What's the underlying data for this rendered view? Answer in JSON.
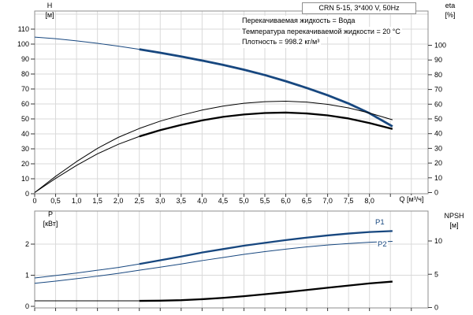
{
  "header": {
    "title": "CRN 5-15, 3*400 V, 50Hz"
  },
  "info": {
    "lines": [
      "Перекачиваемая жидкость = Вода",
      "Температура перекачиваемой жидкости = 20 °C",
      "Плотность = 998.2 кг/м³"
    ]
  },
  "axis_labels": {
    "h_sym": "H",
    "h_unit": "[м]",
    "eta_sym": "eta",
    "eta_unit": "[%]",
    "p_sym": "P",
    "p_unit": "[кВт]",
    "npsh_sym": "NPSH",
    "npsh_unit": "[м]",
    "x_label": "Q [м³/ч]"
  },
  "curve_labels": {
    "p1": "P1",
    "p2": "P2"
  },
  "colors": {
    "blue": "#17477f",
    "black": "#000000",
    "grid": "#d9d9d9",
    "frame": "#8e8e8e",
    "tick": "#3a3a3a",
    "text": "#000000"
  },
  "chart_data": [
    {
      "id": "head-efficiency-chart",
      "type": "line",
      "xlabel": "Q [м³/ч]",
      "x_axis": {
        "min": 0,
        "max": 9.4,
        "tick_step": 0.5,
        "grid_max": 9.0,
        "tick_labels": [
          "0",
          "0,5",
          "1,0",
          "1,5",
          "2,0",
          "2,5",
          "3,0",
          "3,5",
          "4,0",
          "4,5",
          "5,0",
          "5,5",
          "6,0",
          "6,5",
          "7,0",
          "7,5",
          "8,0"
        ]
      },
      "y_left": {
        "label": "H [м]",
        "ticks": [
          0,
          10,
          20,
          30,
          40,
          50,
          60,
          70,
          80,
          90,
          100,
          110
        ],
        "grid": [
          10,
          20,
          30,
          40,
          50,
          60,
          70,
          80,
          90,
          100,
          110,
          120
        ]
      },
      "y_right": {
        "label": "eta [%]",
        "ticks": [
          0,
          10,
          20,
          30,
          40,
          50,
          60,
          70,
          80,
          90,
          100
        ]
      },
      "series": [
        {
          "name": "H",
          "axis": "left",
          "color_key": "blue",
          "thick_from": 2.5,
          "points": [
            [
              0,
              104.7
            ],
            [
              0.5,
              103.6
            ],
            [
              1,
              102.2
            ],
            [
              1.5,
              100.5
            ],
            [
              2,
              98.6
            ],
            [
              2.5,
              96.5
            ],
            [
              3,
              94.2
            ],
            [
              3.5,
              91.7
            ],
            [
              4,
              89.0
            ],
            [
              4.5,
              86.1
            ],
            [
              5,
              82.9
            ],
            [
              5.5,
              79.3
            ],
            [
              6,
              75.2
            ],
            [
              6.5,
              70.7
            ],
            [
              7,
              65.8
            ],
            [
              7.5,
              60.3
            ],
            [
              8,
              53.8
            ],
            [
              8.55,
              45.0
            ]
          ]
        },
        {
          "name": "eta-pump",
          "axis": "right",
          "color_key": "black",
          "thick_from": null,
          "points": [
            [
              0,
              0
            ],
            [
              0.5,
              11
            ],
            [
              1,
              21
            ],
            [
              1.5,
              30
            ],
            [
              2,
              37.5
            ],
            [
              2.5,
              43.5
            ],
            [
              3,
              48.5
            ],
            [
              3.5,
              52.5
            ],
            [
              4,
              56
            ],
            [
              4.5,
              58.7
            ],
            [
              5,
              60.6
            ],
            [
              5.5,
              61.7
            ],
            [
              6,
              62
            ],
            [
              6.5,
              61.4
            ],
            [
              7,
              59.9
            ],
            [
              7.5,
              57.5
            ],
            [
              8,
              54
            ],
            [
              8.55,
              49.4
            ]
          ]
        },
        {
          "name": "eta-pump-motor",
          "axis": "right",
          "color_key": "black",
          "thick_from": 2.5,
          "points": [
            [
              0,
              0
            ],
            [
              0.5,
              9.6
            ],
            [
              1,
              18.4
            ],
            [
              1.5,
              26.3
            ],
            [
              2,
              32.8
            ],
            [
              2.5,
              38.1
            ],
            [
              3,
              42.4
            ],
            [
              3.5,
              45.9
            ],
            [
              4,
              49
            ],
            [
              4.5,
              51.4
            ],
            [
              5,
              53
            ],
            [
              5.5,
              54
            ],
            [
              6,
              54.3
            ],
            [
              6.5,
              53.7
            ],
            [
              7,
              52.4
            ],
            [
              7.5,
              50.3
            ],
            [
              8,
              47.2
            ],
            [
              8.55,
              43.2
            ]
          ]
        }
      ]
    },
    {
      "id": "power-npsh-chart",
      "type": "line",
      "y_left": {
        "label": "P [кВт]",
        "ticks": [
          0,
          1,
          2
        ],
        "grid": [
          1,
          2
        ]
      },
      "y_right": {
        "label": "NPSH [м]",
        "ticks": [
          0,
          5,
          10
        ]
      },
      "series": [
        {
          "name": "P1",
          "axis": "left",
          "color_key": "blue",
          "thick_from": 2.5,
          "points": [
            [
              0,
              0.91
            ],
            [
              0.5,
              0.99
            ],
            [
              1,
              1.07
            ],
            [
              1.5,
              1.16
            ],
            [
              2,
              1.25
            ],
            [
              2.5,
              1.36
            ],
            [
              3,
              1.48
            ],
            [
              3.5,
              1.6
            ],
            [
              4,
              1.73
            ],
            [
              4.5,
              1.84
            ],
            [
              5,
              1.95
            ],
            [
              5.5,
              2.04
            ],
            [
              6,
              2.13
            ],
            [
              6.5,
              2.21
            ],
            [
              7,
              2.28
            ],
            [
              7.5,
              2.34
            ],
            [
              8,
              2.39
            ],
            [
              8.55,
              2.42
            ]
          ]
        },
        {
          "name": "P2",
          "axis": "left",
          "color_key": "blue",
          "thick_from": null,
          "points": [
            [
              0,
              0.74
            ],
            [
              0.5,
              0.81
            ],
            [
              1,
              0.89
            ],
            [
              1.5,
              0.97
            ],
            [
              2,
              1.06
            ],
            [
              2.5,
              1.16
            ],
            [
              3,
              1.26
            ],
            [
              3.5,
              1.36
            ],
            [
              4,
              1.47
            ],
            [
              4.5,
              1.57
            ],
            [
              5,
              1.67
            ],
            [
              5.5,
              1.76
            ],
            [
              6,
              1.84
            ],
            [
              6.5,
              1.91
            ],
            [
              7,
              1.97
            ],
            [
              7.5,
              2.02
            ],
            [
              8,
              2.06
            ],
            [
              8.55,
              2.09
            ]
          ]
        },
        {
          "name": "NPSH",
          "axis": "right",
          "color_key": "black",
          "thick_from": 2.5,
          "points": [
            [
              0,
              1.0
            ],
            [
              0.5,
              1.0
            ],
            [
              1,
              1.0
            ],
            [
              1.5,
              1.0
            ],
            [
              2,
              1.0
            ],
            [
              2.5,
              1.0
            ],
            [
              3,
              1.03
            ],
            [
              3.5,
              1.1
            ],
            [
              4,
              1.25
            ],
            [
              4.5,
              1.45
            ],
            [
              5,
              1.7
            ],
            [
              5.5,
              2.0
            ],
            [
              6,
              2.3
            ],
            [
              6.5,
              2.63
            ],
            [
              7,
              2.97
            ],
            [
              7.5,
              3.3
            ],
            [
              8,
              3.62
            ],
            [
              8.55,
              3.9
            ]
          ]
        }
      ]
    }
  ]
}
